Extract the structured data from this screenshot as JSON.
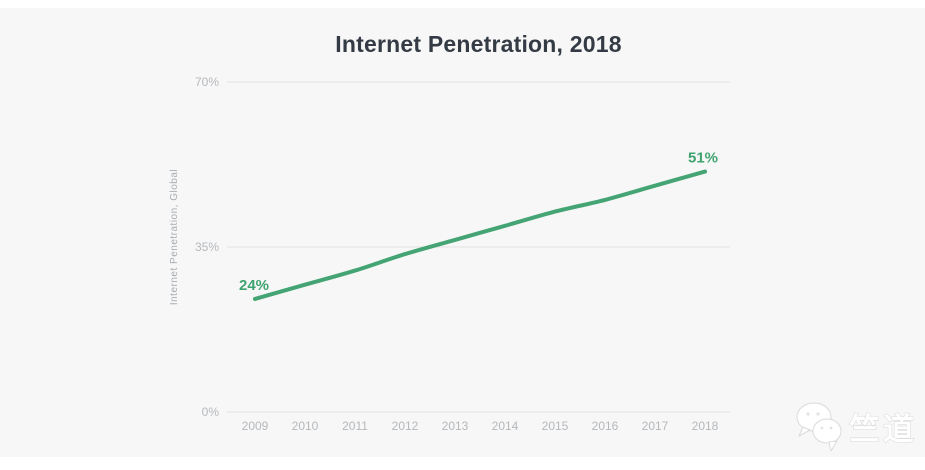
{
  "page": {
    "background": "#ffffff",
    "panel_background": "#f7f7f8"
  },
  "watermark": {
    "text": "竺道",
    "logo": "chat-bubbles-logo",
    "color": "#ffffff"
  },
  "chart_data": {
    "type": "line",
    "title": "Internet Penetration, 2018",
    "xlabel": "",
    "ylabel": "Internet Penetration, Global",
    "categories": [
      "2009",
      "2010",
      "2011",
      "2012",
      "2013",
      "2014",
      "2015",
      "2016",
      "2017",
      "2018"
    ],
    "values": [
      24,
      27,
      30,
      33.5,
      36.5,
      39.5,
      42.5,
      45,
      48,
      51
    ],
    "ylim": [
      0,
      70
    ],
    "yticks": [
      {
        "value": 0,
        "label": "0%"
      },
      {
        "value": 35,
        "label": "35%"
      },
      {
        "value": 70,
        "label": "70%"
      }
    ],
    "grid": "horizontal",
    "legend": "none",
    "annotations": [
      {
        "point_index": 0,
        "label": "24%"
      },
      {
        "point_index": 9,
        "label": "51%"
      }
    ],
    "line_color": "#44a474",
    "label_color": "#3ea36f",
    "title_color": "#343b45",
    "axis_text_color": "#b5b8bb",
    "grid_color": "#e3e3e4"
  }
}
